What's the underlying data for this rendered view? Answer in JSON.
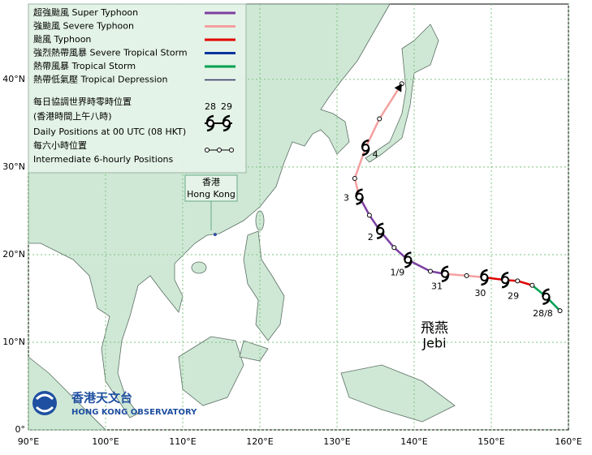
{
  "legend": {
    "items": [
      {
        "label": "超強颱風 Super Typhoon",
        "color": "#7b3fa0"
      },
      {
        "label": "強颱風 Severe Typhoon",
        "color": "#f4a0a0"
      },
      {
        "label": "颱風  Typhoon",
        "color": "#e00000"
      },
      {
        "label": "強烈熱帶風暴 Severe Tropical Storm",
        "color": "#0033a0"
      },
      {
        "label": "熱帶風暴 Tropical Storm",
        "color": "#00a050"
      },
      {
        "label": "熱帶低氣壓  Tropical Depression",
        "color": "#333366"
      }
    ],
    "daily_zh": "每日協調世界時零時位置",
    "daily_hkt": "(香港時間上午八時)",
    "daily_en": "Daily Positions at 00 UTC (08 HKT)",
    "sample_days": [
      "28",
      "29"
    ],
    "sixhourly_zh": "每六小時位置",
    "sixhourly_en": "Intermediate 6-hourly Positions"
  },
  "map": {
    "xlim": [
      90,
      160
    ],
    "ylim": [
      0,
      48.6
    ],
    "xticks": [
      {
        "value": 90,
        "label": "90°E"
      },
      {
        "value": 100,
        "label": "100°E"
      },
      {
        "value": 110,
        "label": "110°E"
      },
      {
        "value": 120,
        "label": "120°E"
      },
      {
        "value": 130,
        "label": "130°E"
      },
      {
        "value": 140,
        "label": "140°E"
      },
      {
        "value": 150,
        "label": "150°E"
      },
      {
        "value": 160,
        "label": "160°E"
      }
    ],
    "yticks": [
      {
        "value": 0,
        "label": "0°"
      },
      {
        "value": 10,
        "label": "10°N"
      },
      {
        "value": 20,
        "label": "20°N"
      },
      {
        "value": 30,
        "label": "30°N"
      },
      {
        "value": 40,
        "label": "40°N"
      }
    ]
  },
  "hong_kong": {
    "label_zh": "香港",
    "label_en": "Hong Kong",
    "lon": 114.2,
    "lat": 22.3
  },
  "storm": {
    "name_zh": "飛燕",
    "name_en": "Jebi",
    "track": [
      {
        "lon": 158.9,
        "lat": 13.6,
        "color": "#00a050"
      },
      {
        "lon": 157.1,
        "lat": 15.2,
        "color": "#00a050"
      },
      {
        "lon": 155.3,
        "lat": 16.5,
        "color": "#00a050"
      },
      {
        "lon": 153.4,
        "lat": 17.0,
        "color": "#e00000"
      },
      {
        "lon": 151.8,
        "lat": 17.1,
        "color": "#e00000"
      },
      {
        "lon": 149.1,
        "lat": 17.4,
        "color": "#e00000"
      },
      {
        "lon": 146.8,
        "lat": 17.6,
        "color": "#f4a0a0"
      },
      {
        "lon": 144.0,
        "lat": 17.8,
        "color": "#f4a0a0"
      },
      {
        "lon": 142.1,
        "lat": 18.1,
        "color": "#7b3fa0"
      },
      {
        "lon": 139.2,
        "lat": 19.4,
        "color": "#7b3fa0"
      },
      {
        "lon": 137.4,
        "lat": 20.8,
        "color": "#7b3fa0"
      },
      {
        "lon": 135.6,
        "lat": 22.7,
        "color": "#7b3fa0"
      },
      {
        "lon": 134.2,
        "lat": 24.5,
        "color": "#7b3fa0"
      },
      {
        "lon": 132.9,
        "lat": 26.6,
        "color": "#7b3fa0"
      },
      {
        "lon": 132.3,
        "lat": 28.7,
        "color": "#f4a0a0"
      },
      {
        "lon": 133.7,
        "lat": 32.2,
        "color": "#f4a0a0"
      },
      {
        "lon": 135.5,
        "lat": 35.5,
        "color": "#f4a0a0"
      },
      {
        "lon": 138.4,
        "lat": 39.5,
        "color": "#f4a0a0"
      }
    ],
    "daily": [
      {
        "label": "28/8",
        "lon": 157.1,
        "lat": 15.2
      },
      {
        "label": "29",
        "lon": 151.8,
        "lat": 17.1
      },
      {
        "label": "30",
        "lon": 149.1,
        "lat": 17.4
      },
      {
        "label": "31",
        "lon": 144.0,
        "lat": 17.8
      },
      {
        "label": "1/9",
        "lon": 139.2,
        "lat": 19.4
      },
      {
        "label": "2",
        "lon": 135.6,
        "lat": 22.7
      },
      {
        "label": "3",
        "lon": 132.9,
        "lat": 26.6
      },
      {
        "label": "4",
        "lon": 133.7,
        "lat": 32.2
      }
    ]
  },
  "logo": {
    "zh": "香港天文台",
    "en": "HONG KONG OBSERVATORY"
  }
}
